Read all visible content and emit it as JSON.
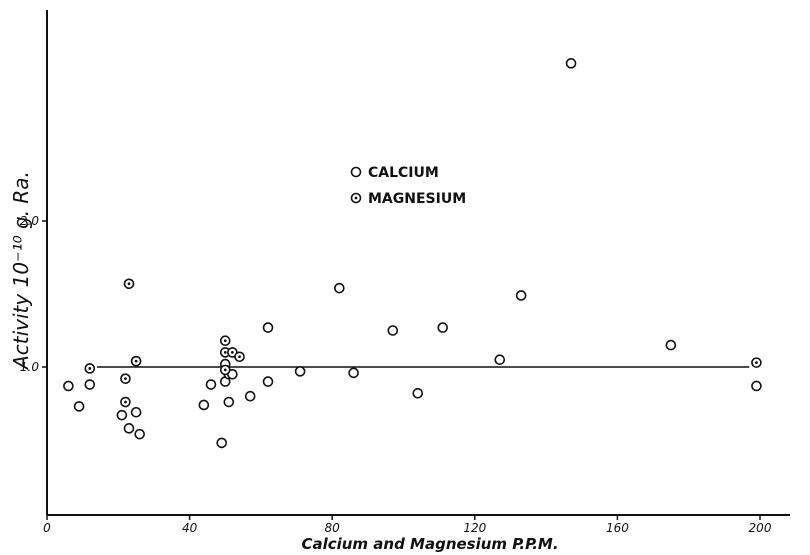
{
  "chart_data": {
    "type": "scatter",
    "xlabel": "Calcium and Magnesium P.P.M.",
    "ylabel": "Activity 10⁻¹⁰ g. Ra.",
    "xlim": [
      0,
      200
    ],
    "ylim": [
      0,
      3.2
    ],
    "x_ticks": [
      "0",
      "40",
      "80",
      "120",
      "160",
      "200"
    ],
    "y_ticks": [
      {
        "value": 1.0,
        "label": "1.0"
      },
      {
        "value": 2.0,
        "label": "2.0"
      }
    ],
    "reference_line": {
      "y": 1.0,
      "x_start": 14,
      "x_end": 197
    },
    "legend": {
      "placement": "top-center"
    },
    "grid": false,
    "series": [
      {
        "name": "CALCIUM",
        "marker": "open-circle",
        "points": [
          [
            6,
            0.87
          ],
          [
            9,
            0.73
          ],
          [
            12,
            0.88
          ],
          [
            21,
            0.67
          ],
          [
            23,
            0.58
          ],
          [
            25,
            0.69
          ],
          [
            26,
            0.54
          ],
          [
            25,
            1.04
          ],
          [
            44,
            0.74
          ],
          [
            46,
            0.88
          ],
          [
            49,
            0.48
          ],
          [
            50,
            0.9
          ],
          [
            50,
            1.02
          ],
          [
            51,
            0.76
          ],
          [
            51,
            0.95
          ],
          [
            52,
            0.95
          ],
          [
            57,
            0.8
          ],
          [
            62,
            0.9
          ],
          [
            62,
            1.27
          ],
          [
            71,
            0.97
          ],
          [
            82,
            1.54
          ],
          [
            86,
            0.96
          ],
          [
            97,
            1.25
          ],
          [
            104,
            0.82
          ],
          [
            111,
            1.27
          ],
          [
            127,
            1.05
          ],
          [
            133,
            1.49
          ],
          [
            147,
            3.08
          ],
          [
            175,
            1.15
          ],
          [
            199,
            0.87
          ]
        ]
      },
      {
        "name": "MAGNESIUM",
        "marker": "dotted-circle",
        "points": [
          [
            12,
            0.99
          ],
          [
            22,
            0.76
          ],
          [
            22,
            0.92
          ],
          [
            23,
            1.57
          ],
          [
            25,
            1.04
          ],
          [
            50,
            0.98
          ],
          [
            50,
            1.1
          ],
          [
            50,
            1.18
          ],
          [
            52,
            1.1
          ],
          [
            54,
            1.07
          ],
          [
            199,
            1.03
          ]
        ]
      }
    ]
  }
}
